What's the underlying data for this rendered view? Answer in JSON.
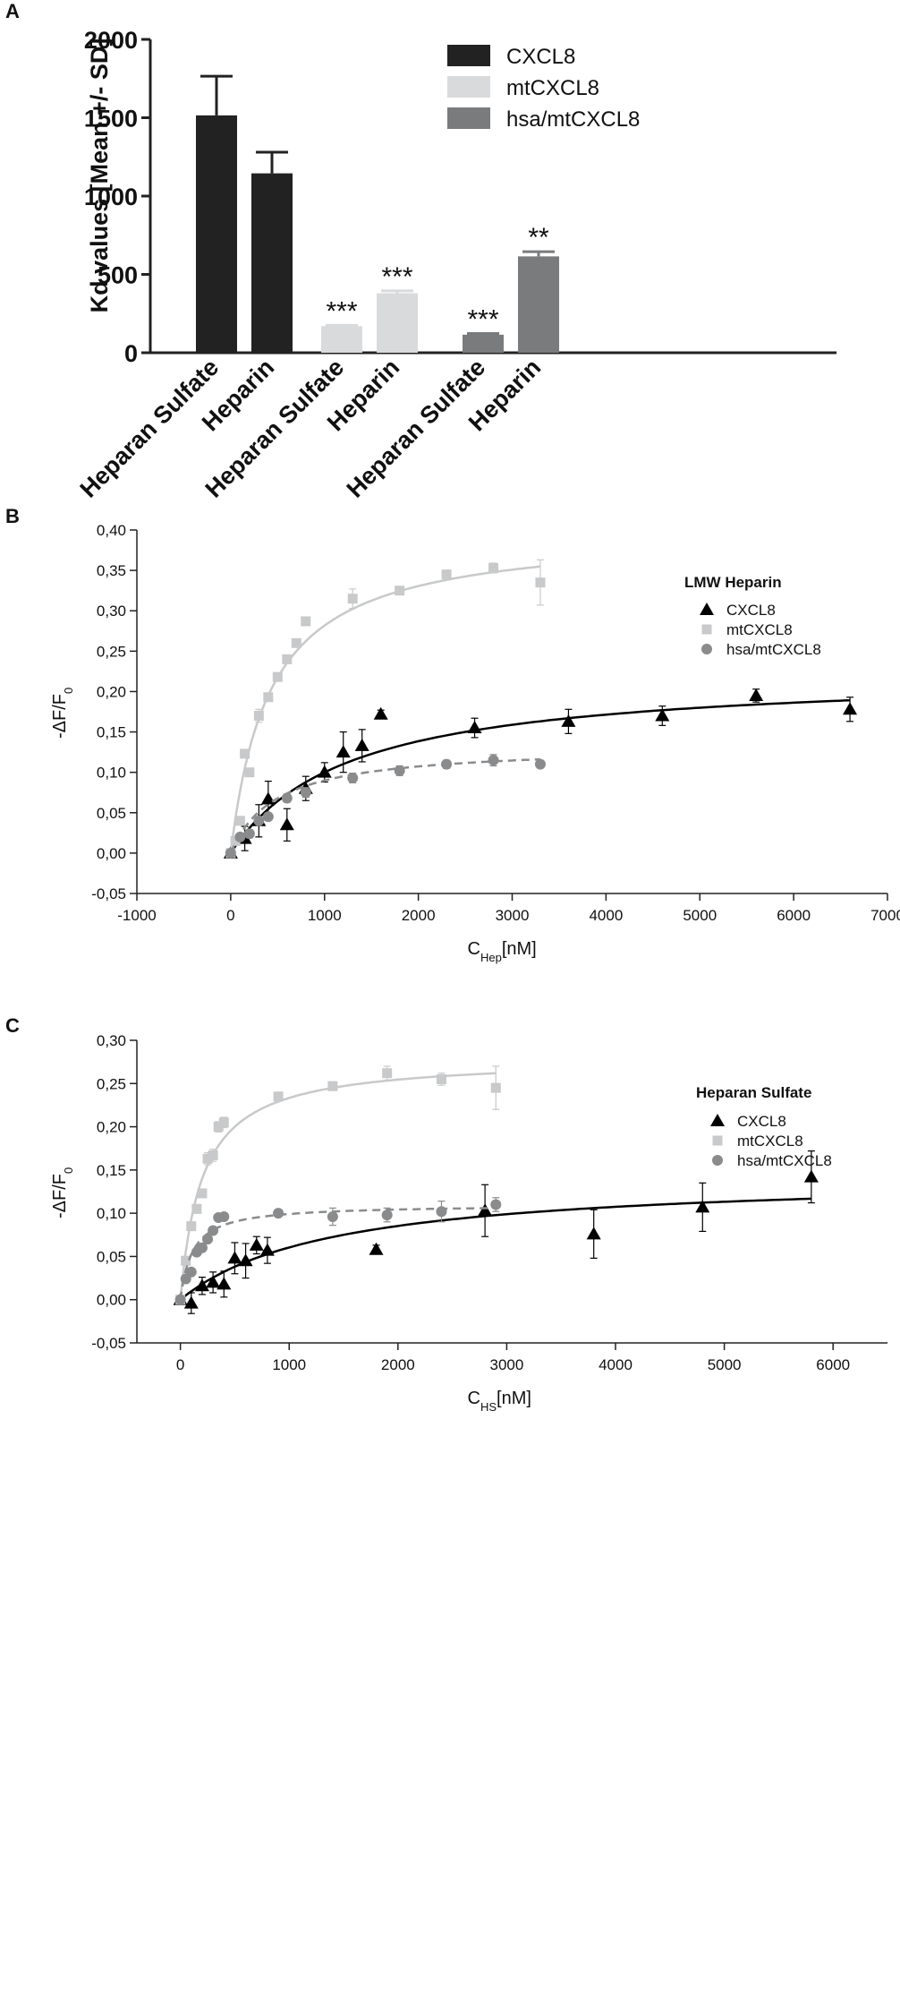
{
  "chart_data": [
    {
      "panel_label": "A",
      "type": "bar",
      "ylabel": "Kd values [Mean +/- SD]",
      "ylim": [
        0,
        2000
      ],
      "yticks": [
        0,
        500,
        1000,
        1500,
        2000
      ],
      "legend_placement": "top-right",
      "series": [
        {
          "name": "CXCL8",
          "color": "#222222"
        },
        {
          "name": "mtCXCL8",
          "color": "#d9dadb"
        },
        {
          "name": "hsa/mtCXCL8",
          "color": "#7a7b7d"
        }
      ],
      "bars": [
        {
          "category": "Heparan Sulfate",
          "series": 0,
          "value": 1515,
          "sd": 250,
          "annotation": ""
        },
        {
          "category": "Heparin",
          "series": 0,
          "value": 1145,
          "sd": 135,
          "annotation": ""
        },
        {
          "category": "Heparan Sulfate",
          "series": 1,
          "value": 170,
          "sd": 5,
          "annotation": "***"
        },
        {
          "category": "Heparin",
          "series": 1,
          "value": 380,
          "sd": 15,
          "annotation": "***"
        },
        {
          "category": "Heparan Sulfate",
          "series": 2,
          "value": 115,
          "sd": 8,
          "annotation": "***"
        },
        {
          "category": "Heparin",
          "series": 2,
          "value": 615,
          "sd": 30,
          "annotation": "**"
        }
      ]
    },
    {
      "panel_label": "B",
      "type": "scatter",
      "xlabel_main": "C",
      "xlabel_sub": "Hep",
      "xlabel_unit": "[nM]",
      "ylabel_main": "-ΔF/F",
      "ylabel_sub": "0",
      "xlim": [
        -1000,
        7000
      ],
      "ylim": [
        -0.05,
        0.4
      ],
      "xticks": [
        "-1000",
        "0",
        "1000",
        "2000",
        "3000",
        "4000",
        "5000",
        "6000",
        "7000"
      ],
      "yticks": [
        "-0,05",
        "0,00",
        "0,05",
        "0,10",
        "0,15",
        "0,20",
        "0,25",
        "0,30",
        "0,35",
        "0,40"
      ],
      "legend_title": "LMW Heparin",
      "legend_placement": "top-right",
      "series": [
        {
          "name": "CXCL8",
          "marker": "triangle",
          "color": "#000000",
          "dashed": false,
          "points": [
            [
              0,
              0.0,
              0
            ],
            [
              150,
              0.018,
              0.015
            ],
            [
              300,
              0.04,
              0.02
            ],
            [
              400,
              0.067,
              0.022
            ],
            [
              600,
              0.035,
              0.02
            ],
            [
              800,
              0.08,
              0.015
            ],
            [
              1000,
              0.1,
              0.012
            ],
            [
              1200,
              0.125,
              0.025
            ],
            [
              1400,
              0.133,
              0.02
            ],
            [
              1600,
              0.172,
              0.005
            ],
            [
              2600,
              0.155,
              0.012
            ],
            [
              3600,
              0.163,
              0.015
            ],
            [
              4600,
              0.17,
              0.012
            ],
            [
              5600,
              0.195,
              0.008
            ],
            [
              6600,
              0.178,
              0.015
            ]
          ],
          "fit": {
            "bmax": 0.225,
            "kd": 1250,
            "xmax": 6600
          }
        },
        {
          "name": "mtCXCL8",
          "marker": "square",
          "color": "#c8c9ca",
          "dashed": false,
          "points": [
            [
              0,
              0.0,
              0
            ],
            [
              50,
              0.015,
              0
            ],
            [
              100,
              0.04,
              0.003
            ],
            [
              150,
              0.123,
              0.005
            ],
            [
              200,
              0.1,
              0.005
            ],
            [
              300,
              0.17,
              0.008
            ],
            [
              400,
              0.193,
              0.005
            ],
            [
              500,
              0.218,
              0.005
            ],
            [
              600,
              0.24,
              0.005
            ],
            [
              700,
              0.26,
              0.005
            ],
            [
              800,
              0.287,
              0.004
            ],
            [
              1300,
              0.315,
              0.012
            ],
            [
              1800,
              0.325,
              0.005
            ],
            [
              2300,
              0.345,
              0.003
            ],
            [
              2800,
              0.353,
              0.006
            ],
            [
              3300,
              0.335,
              0.028
            ]
          ],
          "fit": {
            "bmax": 0.4,
            "kd": 420,
            "xmax": 3300
          }
        },
        {
          "name": "hsa/mtCXCL8",
          "marker": "circle",
          "color": "#8a8b8c",
          "dashed": true,
          "points": [
            [
              0,
              0.0,
              0
            ],
            [
              100,
              0.02,
              0.003
            ],
            [
              200,
              0.024,
              0.005
            ],
            [
              300,
              0.04,
              0.004
            ],
            [
              400,
              0.045,
              0.004
            ],
            [
              600,
              0.068,
              0.005
            ],
            [
              800,
              0.075,
              0.006
            ],
            [
              1300,
              0.093,
              0.006
            ],
            [
              1800,
              0.102,
              0.006
            ],
            [
              2300,
              0.11,
              0.005
            ],
            [
              2800,
              0.115,
              0.007
            ],
            [
              3300,
              0.11,
              0.004
            ]
          ],
          "fit": {
            "bmax": 0.133,
            "kd": 480,
            "xmax": 3300
          }
        }
      ]
    },
    {
      "panel_label": "C",
      "type": "scatter",
      "xlabel_main": "C",
      "xlabel_sub": "HS",
      "xlabel_unit": "[nM]",
      "ylabel_main": "-ΔF/F",
      "ylabel_sub": "0",
      "xlim": [
        -400,
        6500
      ],
      "ylim": [
        -0.05,
        0.3
      ],
      "xticks": [
        "0",
        "1000",
        "2000",
        "3000",
        "4000",
        "5000",
        "6000"
      ],
      "yticks": [
        "-0,05",
        "0,00",
        "0,05",
        "0,10",
        "0,15",
        "0,20",
        "0,25",
        "0,30"
      ],
      "legend_title": "Heparan Sulfate",
      "legend_placement": "top-right",
      "series": [
        {
          "name": "CXCL8",
          "marker": "triangle",
          "color": "#000000",
          "dashed": false,
          "points": [
            [
              0,
              0.0,
              0
            ],
            [
              100,
              -0.004,
              0.012
            ],
            [
              200,
              0.016,
              0.01
            ],
            [
              300,
              0.02,
              0.012
            ],
            [
              400,
              0.018,
              0.015
            ],
            [
              500,
              0.048,
              0.018
            ],
            [
              600,
              0.045,
              0.02
            ],
            [
              700,
              0.063,
              0.01
            ],
            [
              800,
              0.057,
              0.015
            ],
            [
              1800,
              0.058,
              0.005
            ],
            [
              2800,
              0.103,
              0.03
            ],
            [
              3800,
              0.076,
              0.028
            ],
            [
              4800,
              0.107,
              0.028
            ],
            [
              5800,
              0.142,
              0.03
            ]
          ],
          "fit": {
            "bmax": 0.145,
            "kd": 1400,
            "xmax": 5800
          }
        },
        {
          "name": "mtCXCL8",
          "marker": "square",
          "color": "#c8c9ca",
          "dashed": false,
          "points": [
            [
              0,
              0.0,
              0
            ],
            [
              50,
              0.045,
              0.005
            ],
            [
              100,
              0.085,
              0.005
            ],
            [
              150,
              0.105,
              0.005
            ],
            [
              200,
              0.123,
              0.005
            ],
            [
              250,
              0.163,
              0.007
            ],
            [
              300,
              0.167,
              0.007
            ],
            [
              350,
              0.2,
              0.006
            ],
            [
              400,
              0.205,
              0.006
            ],
            [
              900,
              0.235,
              0.005
            ],
            [
              1400,
              0.247,
              0.005
            ],
            [
              1900,
              0.262,
              0.008
            ],
            [
              2400,
              0.255,
              0.007
            ],
            [
              2900,
              0.245,
              0.025
            ]
          ],
          "fit": {
            "bmax": 0.28,
            "kd": 200,
            "xmax": 2900
          }
        },
        {
          "name": "hsa/mtCXCL8",
          "marker": "circle",
          "color": "#8a8b8c",
          "dashed": true,
          "points": [
            [
              0,
              0.0,
              0
            ],
            [
              50,
              0.024,
              0.003
            ],
            [
              100,
              0.032,
              0.003
            ],
            [
              150,
              0.055,
              0.003
            ],
            [
              200,
              0.06,
              0.004
            ],
            [
              250,
              0.07,
              0.004
            ],
            [
              300,
              0.08,
              0.004
            ],
            [
              350,
              0.095,
              0.004
            ],
            [
              400,
              0.096,
              0.004
            ],
            [
              900,
              0.1,
              0.004
            ],
            [
              1400,
              0.096,
              0.01
            ],
            [
              1900,
              0.098,
              0.008
            ],
            [
              2400,
              0.102,
              0.012
            ],
            [
              2900,
              0.11,
              0.008
            ]
          ],
          "fit": {
            "bmax": 0.11,
            "kd": 110,
            "xmax": 2900
          }
        }
      ]
    }
  ]
}
